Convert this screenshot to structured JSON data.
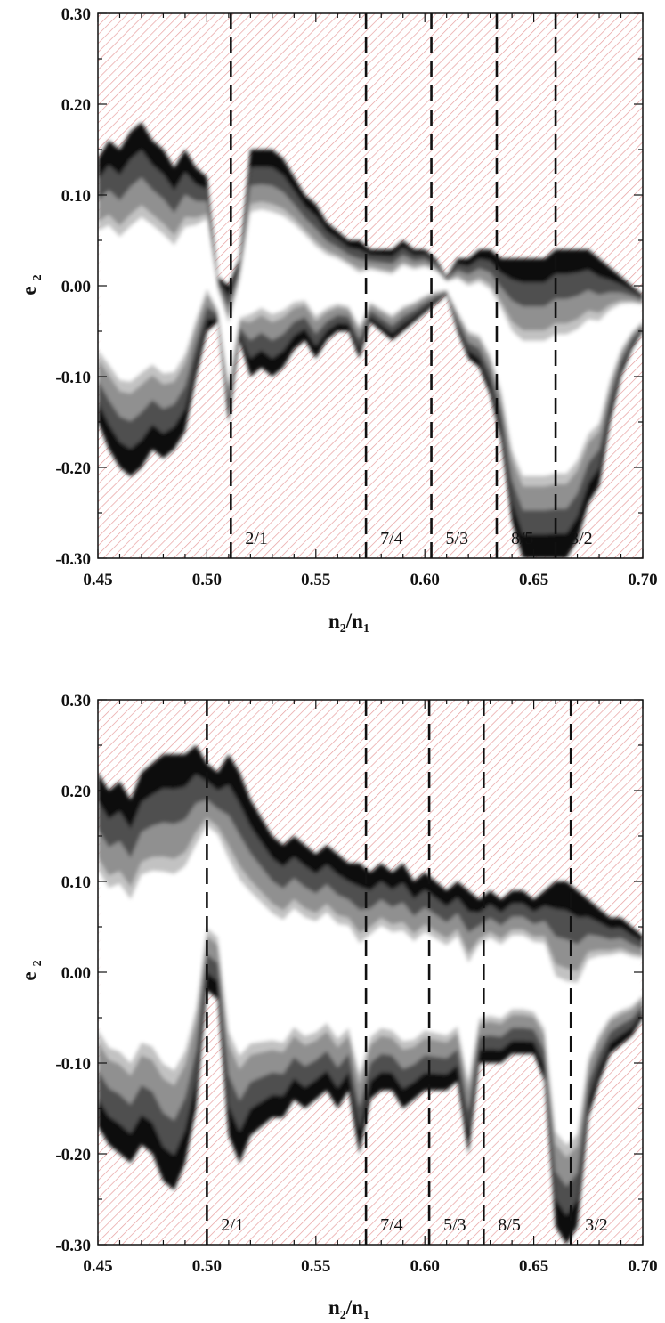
{
  "colors": {
    "hatch": "#e8a0a0",
    "hatch_background": "#ffffff",
    "stable_levels": [
      "#ffffff",
      "#e6e6e6",
      "#c2c2c2",
      "#909090",
      "#505050",
      "#0a0a0a"
    ],
    "resonance_line": "#111111",
    "axis": "#111111"
  },
  "chart_data": [
    {
      "type": "heatmap",
      "title": "",
      "xlabel": {
        "main": "n",
        "sub1": "2",
        "slash": "/n",
        "sub2": "1"
      },
      "ylabel": {
        "main": "e",
        "sub": "2"
      },
      "xlim": [
        0.45,
        0.7
      ],
      "ylim": [
        -0.3,
        0.3
      ],
      "x_ticks": [
        "0.45",
        "0.50",
        "0.55",
        "0.60",
        "0.65",
        "0.70"
      ],
      "y_ticks": [
        "-0.30",
        "-0.20",
        "-0.10",
        "0.00",
        "0.10",
        "0.20",
        "0.30"
      ],
      "background": "hatched (unstable)",
      "resonances": [
        {
          "label": "2/1",
          "x": 0.511
        },
        {
          "label": "7/4",
          "x": 0.573
        },
        {
          "label": "5/3",
          "x": 0.603
        },
        {
          "label": "8/5",
          "x": 0.633
        },
        {
          "label": "3/2",
          "x": 0.66
        }
      ],
      "stable_region": {
        "columns": [
          [
            0.45,
            0.14,
            -0.15
          ],
          [
            0.455,
            0.16,
            -0.18
          ],
          [
            0.46,
            0.15,
            -0.2
          ],
          [
            0.465,
            0.17,
            -0.21
          ],
          [
            0.47,
            0.18,
            -0.2
          ],
          [
            0.475,
            0.16,
            -0.18
          ],
          [
            0.48,
            0.15,
            -0.19
          ],
          [
            0.485,
            0.13,
            -0.18
          ],
          [
            0.49,
            0.15,
            -0.16
          ],
          [
            0.495,
            0.13,
            -0.1
          ],
          [
            0.5,
            0.12,
            -0.05
          ],
          [
            0.505,
            0.01,
            -0.04
          ],
          [
            0.51,
            0.0,
            -0.15
          ],
          [
            0.515,
            0.03,
            -0.06
          ],
          [
            0.52,
            0.15,
            -0.1
          ],
          [
            0.525,
            0.15,
            -0.09
          ],
          [
            0.53,
            0.15,
            -0.1
          ],
          [
            0.535,
            0.14,
            -0.09
          ],
          [
            0.54,
            0.12,
            -0.07
          ],
          [
            0.545,
            0.1,
            -0.06
          ],
          [
            0.55,
            0.09,
            -0.08
          ],
          [
            0.555,
            0.07,
            -0.06
          ],
          [
            0.56,
            0.06,
            -0.05
          ],
          [
            0.565,
            0.05,
            -0.05
          ],
          [
            0.57,
            0.05,
            -0.08
          ],
          [
            0.575,
            0.04,
            -0.04
          ],
          [
            0.58,
            0.04,
            -0.05
          ],
          [
            0.585,
            0.04,
            -0.06
          ],
          [
            0.59,
            0.05,
            -0.05
          ],
          [
            0.595,
            0.04,
            -0.04
          ],
          [
            0.6,
            0.04,
            -0.03
          ],
          [
            0.605,
            0.03,
            -0.02
          ],
          [
            0.61,
            0.01,
            -0.01
          ],
          [
            0.615,
            0.03,
            -0.05
          ],
          [
            0.62,
            0.03,
            -0.08
          ],
          [
            0.625,
            0.04,
            -0.09
          ],
          [
            0.63,
            0.04,
            -0.12
          ],
          [
            0.635,
            0.03,
            -0.17
          ],
          [
            0.64,
            0.03,
            -0.26
          ],
          [
            0.645,
            0.03,
            -0.3
          ],
          [
            0.65,
            0.03,
            -0.3
          ],
          [
            0.655,
            0.03,
            -0.3
          ],
          [
            0.66,
            0.04,
            -0.3
          ],
          [
            0.665,
            0.04,
            -0.3
          ],
          [
            0.67,
            0.04,
            -0.28
          ],
          [
            0.675,
            0.04,
            -0.24
          ],
          [
            0.68,
            0.03,
            -0.22
          ],
          [
            0.685,
            0.02,
            -0.15
          ],
          [
            0.69,
            0.01,
            -0.1
          ],
          [
            0.695,
            0.0,
            -0.07
          ],
          [
            0.7,
            -0.01,
            -0.05
          ]
        ]
      }
    },
    {
      "type": "heatmap",
      "title": "",
      "xlabel": {
        "main": "n",
        "sub1": "2",
        "slash": "/n",
        "sub2": "1"
      },
      "ylabel": {
        "main": "e",
        "sub": "2"
      },
      "xlim": [
        0.45,
        0.7
      ],
      "ylim": [
        -0.3,
        0.3
      ],
      "x_ticks": [
        "0.45",
        "0.50",
        "0.55",
        "0.60",
        "0.65",
        "0.70"
      ],
      "y_ticks": [
        "-0.30",
        "-0.20",
        "-0.10",
        "0.00",
        "0.10",
        "0.20",
        "0.30"
      ],
      "background": "hatched (unstable)",
      "resonances": [
        {
          "label": "2/1",
          "x": 0.5
        },
        {
          "label": "7/4",
          "x": 0.573
        },
        {
          "label": "5/3",
          "x": 0.602
        },
        {
          "label": "8/5",
          "x": 0.627
        },
        {
          "label": "3/2",
          "x": 0.667
        }
      ],
      "stable_region": {
        "columns": [
          [
            0.45,
            0.22,
            -0.17
          ],
          [
            0.455,
            0.2,
            -0.19
          ],
          [
            0.46,
            0.21,
            -0.2
          ],
          [
            0.465,
            0.19,
            -0.21
          ],
          [
            0.47,
            0.22,
            -0.19
          ],
          [
            0.475,
            0.23,
            -0.2
          ],
          [
            0.48,
            0.24,
            -0.23
          ],
          [
            0.485,
            0.24,
            -0.24
          ],
          [
            0.49,
            0.24,
            -0.21
          ],
          [
            0.495,
            0.25,
            -0.15
          ],
          [
            0.5,
            0.23,
            -0.02
          ],
          [
            0.505,
            0.22,
            -0.03
          ],
          [
            0.51,
            0.24,
            -0.18
          ],
          [
            0.515,
            0.22,
            -0.21
          ],
          [
            0.52,
            0.19,
            -0.18
          ],
          [
            0.525,
            0.17,
            -0.17
          ],
          [
            0.53,
            0.15,
            -0.16
          ],
          [
            0.535,
            0.14,
            -0.16
          ],
          [
            0.54,
            0.15,
            -0.14
          ],
          [
            0.545,
            0.14,
            -0.15
          ],
          [
            0.55,
            0.13,
            -0.14
          ],
          [
            0.555,
            0.14,
            -0.13
          ],
          [
            0.56,
            0.13,
            -0.15
          ],
          [
            0.565,
            0.12,
            -0.13
          ],
          [
            0.57,
            0.12,
            -0.2
          ],
          [
            0.575,
            0.11,
            -0.14
          ],
          [
            0.58,
            0.12,
            -0.13
          ],
          [
            0.585,
            0.11,
            -0.13
          ],
          [
            0.59,
            0.12,
            -0.15
          ],
          [
            0.595,
            0.1,
            -0.14
          ],
          [
            0.6,
            0.11,
            -0.13
          ],
          [
            0.605,
            0.1,
            -0.13
          ],
          [
            0.61,
            0.09,
            -0.13
          ],
          [
            0.615,
            0.1,
            -0.12
          ],
          [
            0.62,
            0.09,
            -0.2
          ],
          [
            0.625,
            0.08,
            -0.1
          ],
          [
            0.63,
            0.09,
            -0.1
          ],
          [
            0.635,
            0.08,
            -0.1
          ],
          [
            0.64,
            0.09,
            -0.09
          ],
          [
            0.645,
            0.09,
            -0.09
          ],
          [
            0.65,
            0.08,
            -0.09
          ],
          [
            0.655,
            0.09,
            -0.12
          ],
          [
            0.66,
            0.1,
            -0.28
          ],
          [
            0.665,
            0.1,
            -0.3
          ],
          [
            0.67,
            0.09,
            -0.28
          ],
          [
            0.675,
            0.08,
            -0.16
          ],
          [
            0.68,
            0.07,
            -0.12
          ],
          [
            0.685,
            0.06,
            -0.09
          ],
          [
            0.69,
            0.06,
            -0.08
          ],
          [
            0.695,
            0.05,
            -0.07
          ],
          [
            0.7,
            0.04,
            -0.05
          ]
        ]
      }
    }
  ]
}
